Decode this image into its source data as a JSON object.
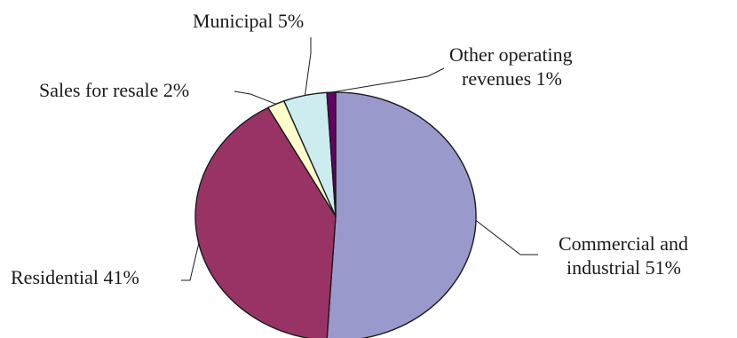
{
  "chart_data": {
    "type": "pie",
    "slices": [
      {
        "label_lines": [
          "Commercial and",
          "industrial 51%"
        ],
        "category": "Commercial and industrial",
        "value": 51,
        "color": "#9999cc"
      },
      {
        "label_lines": [
          "Residential 41%"
        ],
        "category": "Residential",
        "value": 41,
        "color": "#993366"
      },
      {
        "label_lines": [
          "Sales for resale 2%"
        ],
        "category": "Sales for resale",
        "value": 2,
        "color": "#ffffcc"
      },
      {
        "label_lines": [
          "Municipal 5%"
        ],
        "category": "Municipal",
        "value": 5,
        "color": "#ccecf0"
      },
      {
        "label_lines": [
          "Other operating",
          "revenues 1%"
        ],
        "category": "Other operating revenues",
        "value": 1,
        "color": "#660066"
      }
    ],
    "start": "top",
    "direction": "clockwise"
  }
}
